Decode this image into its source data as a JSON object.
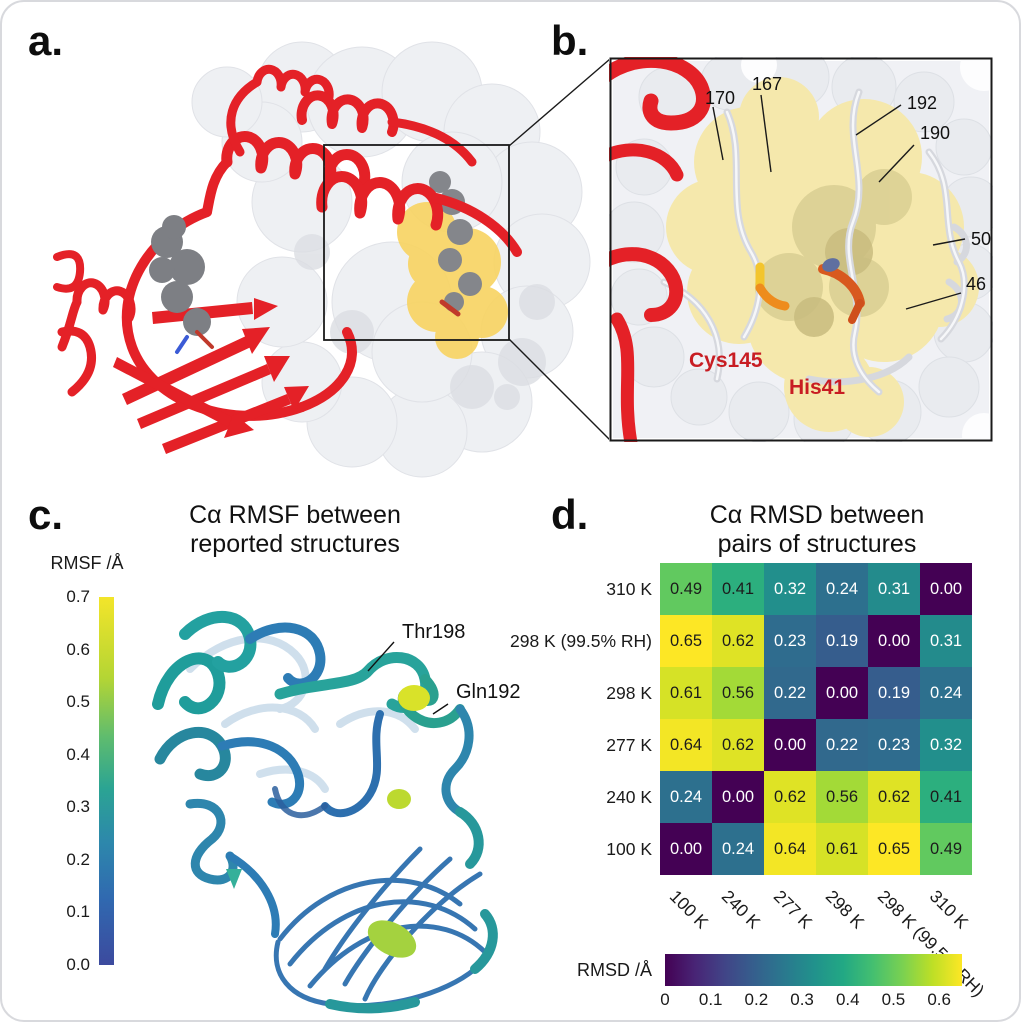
{
  "panels": {
    "a": {
      "label": "a."
    },
    "b": {
      "label": "b.",
      "site_labels": [
        "170",
        "167",
        "192",
        "190",
        "50",
        "46"
      ],
      "residues": {
        "cys": "Cys145",
        "his": "His41"
      }
    },
    "c": {
      "label": "c.",
      "title_lines": [
        "Cα RMSF between",
        "reported structures"
      ],
      "colorbar": {
        "label": "RMSF /Å",
        "ticks": [
          "0.7",
          "0.6",
          "0.5",
          "0.4",
          "0.3",
          "0.2",
          "0.1",
          "0.0"
        ]
      },
      "annotations": [
        "Thr198",
        "Gln192"
      ]
    },
    "d": {
      "label": "d.",
      "title_lines": [
        "Cα RMSD between",
        "pairs of structures"
      ],
      "colorbar": {
        "label": "RMSD /Å",
        "ticks": [
          "0",
          "0.1",
          "0.2",
          "0.3",
          "0.4",
          "0.5",
          "0.6"
        ]
      }
    }
  },
  "colors": {
    "cartoon_red": "#e42127",
    "surface_gray": "#eef0f3",
    "pocket_yellow_a": "#f8d464",
    "pocket_yellow_b": "#f5e8ac",
    "ligand_gray": "#7d7f84",
    "residue_label_red": "#c81d23",
    "heatmap_colormap": "viridis"
  },
  "chart_data": {
    "type": "heatmap",
    "title": "Cα RMSD between pairs of structures",
    "rows": [
      "310 K",
      "298 K (99.5% RH)",
      "298 K",
      "277 K",
      "240 K",
      "100 K"
    ],
    "columns": [
      "100 K",
      "240 K",
      "277 K",
      "298 K",
      "298 K (99.5% RH)",
      "310 K"
    ],
    "values": [
      [
        0.49,
        0.41,
        0.32,
        0.24,
        0.31,
        0.0
      ],
      [
        0.65,
        0.62,
        0.23,
        0.19,
        0.0,
        0.31
      ],
      [
        0.61,
        0.56,
        0.22,
        0.0,
        0.19,
        0.24
      ],
      [
        0.64,
        0.62,
        0.0,
        0.22,
        0.23,
        0.32
      ],
      [
        0.24,
        0.0,
        0.62,
        0.56,
        0.62,
        0.41
      ],
      [
        0.0,
        0.24,
        0.64,
        0.61,
        0.65,
        0.49
      ]
    ],
    "colormap": "viridis",
    "vmin": 0,
    "vmax": 0.65,
    "colorbar_label": "RMSD /Å",
    "colorbar_ticks": [
      0,
      0.1,
      0.2,
      0.3,
      0.4,
      0.5,
      0.6
    ],
    "rmsf_colorbar": {
      "label": "RMSF /Å",
      "min": 0.0,
      "max": 0.7,
      "ticks": [
        0.7,
        0.6,
        0.5,
        0.4,
        0.3,
        0.2,
        0.1,
        0.0
      ]
    }
  }
}
